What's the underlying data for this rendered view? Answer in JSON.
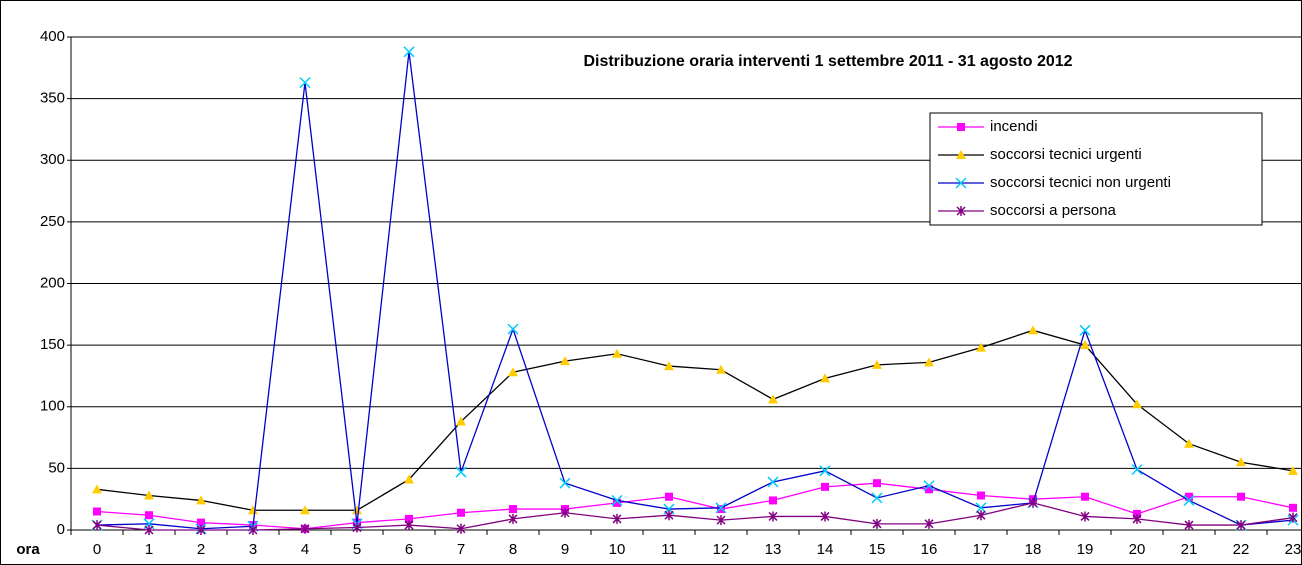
{
  "chart_data": {
    "type": "line",
    "title": "Distribuzione oraria interventi 1 settembre 2011 - 31 agosto 2012",
    "x_label": "ora",
    "categories": [
      "0",
      "1",
      "2",
      "3",
      "4",
      "5",
      "6",
      "7",
      "8",
      "9",
      "10",
      "11",
      "12",
      "13",
      "14",
      "15",
      "16",
      "17",
      "18",
      "19",
      "20",
      "21",
      "22",
      "23"
    ],
    "ylim": [
      0,
      400
    ],
    "yticks": [
      0,
      50,
      100,
      150,
      200,
      250,
      300,
      350,
      400
    ],
    "grid": true,
    "legend": "upper right",
    "series": [
      {
        "name": "incendi",
        "color": "#ff00ff",
        "marker": "square",
        "values": [
          15,
          12,
          6,
          4,
          1,
          6,
          9,
          14,
          17,
          17,
          22,
          27,
          17,
          24,
          35,
          38,
          33,
          28,
          25,
          27,
          13,
          27,
          27,
          18
        ]
      },
      {
        "name": "soccorsi tecnici urgenti",
        "color": "#000000",
        "marker_color": "#ffcc00",
        "marker": "triangle",
        "values": [
          33,
          28,
          24,
          16,
          16,
          16,
          41,
          88,
          128,
          137,
          143,
          133,
          130,
          106,
          123,
          134,
          136,
          148,
          162,
          150,
          102,
          70,
          55,
          48
        ]
      },
      {
        "name": "soccorsi tecnici non urgenti",
        "color": "#0000cc",
        "marker_color": "#00ccff",
        "marker": "x",
        "values": [
          4,
          5,
          1,
          3,
          363,
          5,
          388,
          47,
          163,
          38,
          24,
          17,
          18,
          39,
          48,
          26,
          36,
          18,
          22,
          162,
          49,
          24,
          4,
          8
        ]
      },
      {
        "name": "soccorsi a persona",
        "color": "#800080",
        "marker": "star",
        "values": [
          4,
          0,
          0,
          0,
          1,
          2,
          4,
          1,
          9,
          14,
          9,
          12,
          8,
          11,
          11,
          5,
          5,
          12,
          22,
          11,
          9,
          4,
          4,
          10
        ]
      }
    ]
  }
}
